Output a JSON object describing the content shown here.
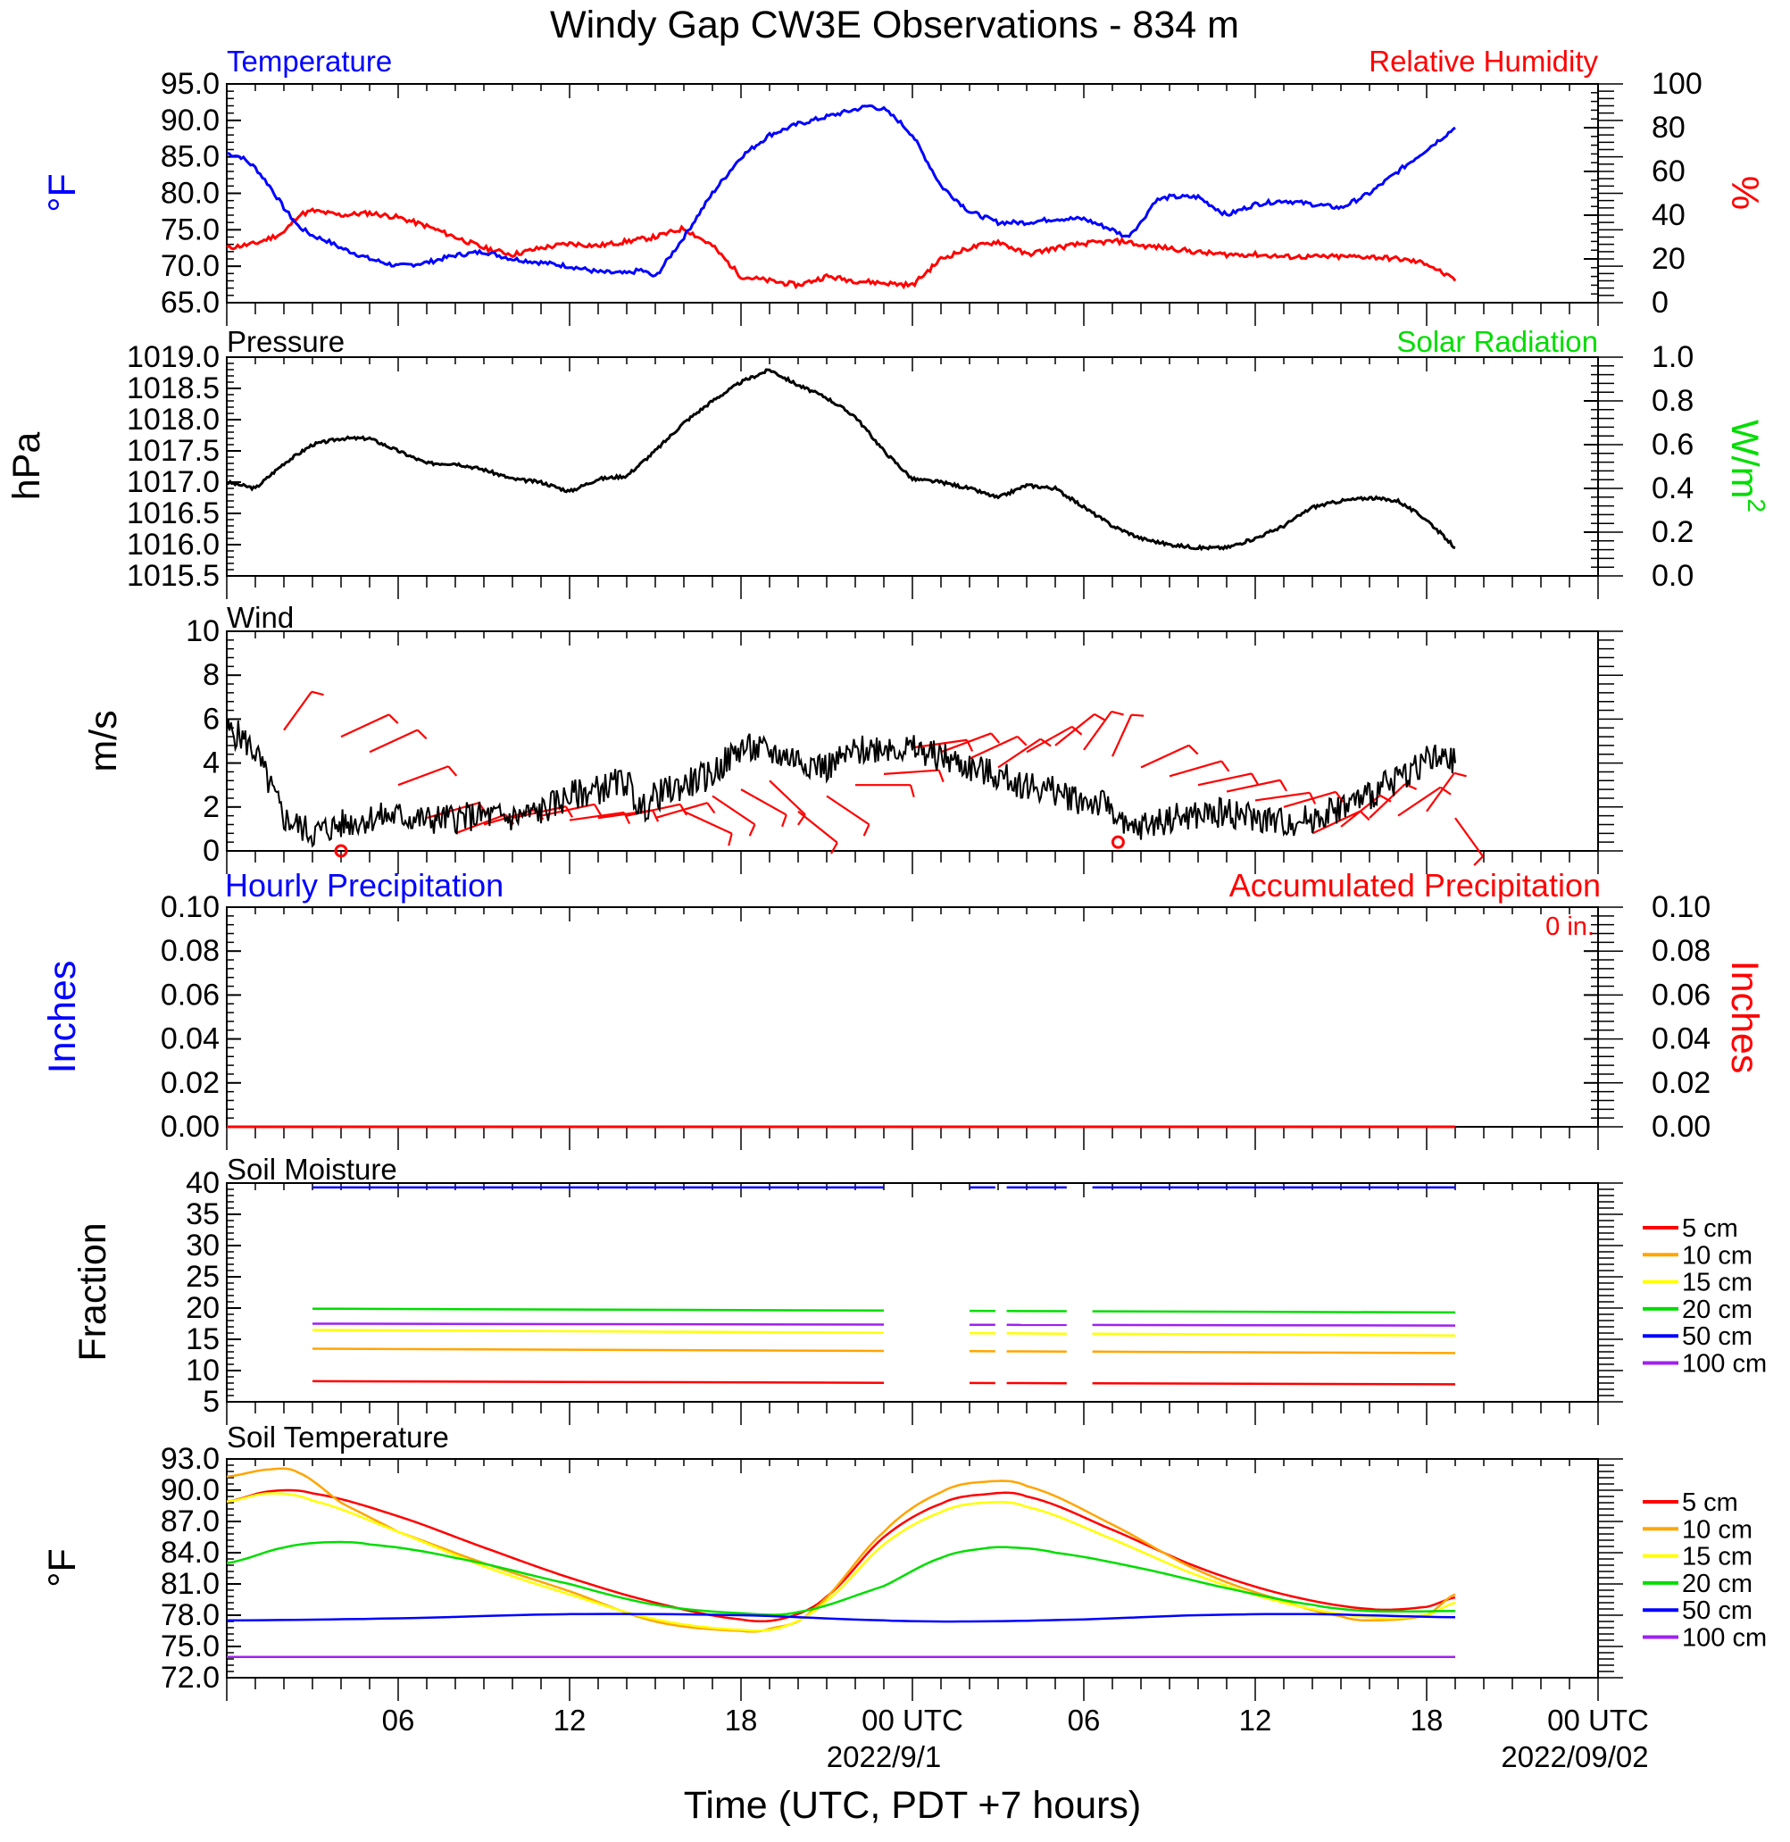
{
  "title": "Windy Gap CW3E Observations - 834 m",
  "xlabel": "Time (UTC, PDT +7 hours)",
  "x_ticks": [
    "06",
    "12",
    "18",
    "00 UTC",
    "06",
    "12",
    "18",
    "00 UTC"
  ],
  "x_dates": [
    "2022/9/1",
    "2022/09/02"
  ],
  "colors": {
    "blue": "#0000ff",
    "red": "#ff0000",
    "green": "#00dd00",
    "orange": "#ffa500",
    "yellow": "#ffff00",
    "purple": "#a020f0",
    "black": "#000000"
  },
  "chart_data": [
    {
      "type": "line",
      "panel": "temperature-rh",
      "title_left": "Temperature",
      "title_right": "Relative Humidity",
      "ylabel_left": "°F",
      "ylabel_right": "%",
      "x_range_hours": [
        0,
        48
      ],
      "ylim_left": [
        65,
        95
      ],
      "yticks_left": [
        "95.0",
        "90.0",
        "85.0",
        "80.0",
        "75.0",
        "70.0",
        "65.0"
      ],
      "ylim_right": [
        0,
        100
      ],
      "yticks_right": [
        "100",
        "80",
        "60",
        "40",
        "20",
        "0"
      ],
      "series": [
        {
          "name": "Temperature",
          "axis": "left",
          "color": "blue",
          "x": [
            0,
            0.5,
            1,
            1.5,
            2,
            2.5,
            3,
            3.5,
            4,
            5,
            6,
            7,
            8,
            9,
            10,
            11,
            12,
            13,
            14,
            14.5,
            15,
            16,
            17,
            18,
            19,
            20,
            21,
            22,
            22.5,
            23,
            23.5,
            24,
            25,
            26,
            27,
            28,
            29,
            30,
            31,
            31.5,
            32,
            32.5,
            33,
            34,
            35,
            36,
            37,
            38,
            39,
            40,
            41,
            42,
            43
          ],
          "y": [
            85.5,
            85,
            83.5,
            81,
            78,
            75.5,
            74.2,
            73.5,
            72.5,
            71,
            70,
            70.5,
            71.5,
            72,
            71,
            70.5,
            70,
            69.2,
            69,
            69.5,
            68.5,
            74,
            80,
            85,
            88,
            89.5,
            90.5,
            91.5,
            92,
            91.5,
            90,
            88,
            81,
            77.5,
            76,
            76,
            76.5,
            76.5,
            75,
            74,
            76,
            79,
            79.5,
            79.5,
            77,
            78.5,
            79,
            78.5,
            78,
            80,
            83,
            86,
            89
          ]
        },
        {
          "name": "Relative Humidity",
          "axis": "right",
          "color": "red",
          "x": [
            0,
            1,
            2,
            2.5,
            3,
            4,
            5,
            6,
            7,
            8,
            9,
            10,
            11,
            12,
            13,
            14,
            15,
            16,
            17,
            18,
            19,
            20,
            21,
            22,
            23,
            24,
            25,
            26,
            27,
            28,
            29,
            30,
            31,
            31.5,
            32,
            33,
            34,
            35,
            36,
            37,
            38,
            39,
            40,
            41,
            42,
            43
          ],
          "y": [
            25,
            27,
            32,
            40,
            42,
            40,
            41,
            39,
            35,
            30,
            25,
            22,
            25,
            27,
            26,
            28,
            30,
            34,
            26,
            12,
            10,
            8,
            12,
            10,
            9,
            8,
            20,
            25,
            28,
            22,
            25,
            27,
            28,
            28,
            26,
            25,
            23,
            22,
            22,
            21,
            21,
            21,
            21,
            20,
            18,
            10
          ]
        }
      ]
    },
    {
      "type": "line",
      "panel": "pressure-solar",
      "title_left": "Pressure",
      "title_right": "Solar Radiation",
      "ylabel_left": "hPa",
      "ylabel_right": "W/m",
      "ylabel_right_sup": "2",
      "ylim_left": [
        1015.5,
        1019.0
      ],
      "yticks_left": [
        "1019.0",
        "1018.5",
        "1018.0",
        "1017.5",
        "1017.0",
        "1016.5",
        "1016.0",
        "1015.5"
      ],
      "ylim_right": [
        0,
        1.0
      ],
      "yticks_right": [
        "1.0",
        "0.8",
        "0.6",
        "0.4",
        "0.2",
        "0.0"
      ],
      "series": [
        {
          "name": "Pressure",
          "axis": "left",
          "color": "black",
          "x": [
            0,
            1,
            2,
            3,
            4,
            5,
            6,
            7,
            8,
            9,
            10,
            11,
            12,
            13,
            14,
            15,
            16,
            17,
            18,
            19,
            20,
            21,
            22,
            23,
            24,
            25,
            26,
            27,
            28,
            29,
            30,
            31,
            32,
            33,
            34,
            35,
            36,
            37,
            38,
            39,
            40,
            41,
            42,
            43
          ],
          "y": [
            1017.0,
            1016.9,
            1017.3,
            1017.6,
            1017.7,
            1017.7,
            1017.5,
            1017.3,
            1017.3,
            1017.2,
            1017.05,
            1017.0,
            1016.85,
            1017.05,
            1017.1,
            1017.5,
            1017.95,
            1018.3,
            1018.6,
            1018.8,
            1018.55,
            1018.35,
            1018.05,
            1017.5,
            1017.05,
            1017.0,
            1016.9,
            1016.75,
            1016.95,
            1016.9,
            1016.6,
            1016.3,
            1016.1,
            1016.0,
            1015.95,
            1015.95,
            1016.1,
            1016.3,
            1016.6,
            1016.7,
            1016.75,
            1016.7,
            1016.4,
            1015.95
          ]
        }
      ]
    },
    {
      "type": "line",
      "panel": "wind",
      "title_left": "Wind",
      "ylabel_left": "m/s",
      "ylim_left": [
        0,
        10
      ],
      "yticks_left": [
        "10",
        "8",
        "6",
        "4",
        "2",
        "0"
      ],
      "series": [
        {
          "name": "Wind speed",
          "axis": "left",
          "color": "black",
          "x": [
            0,
            0.5,
            1,
            1.5,
            2,
            3,
            4,
            5,
            6,
            7,
            8,
            9,
            10,
            11,
            12,
            13,
            14,
            14.5,
            15,
            16,
            17,
            18,
            19,
            20,
            21,
            22,
            23,
            24,
            25,
            26,
            27,
            28,
            29,
            30,
            31,
            31.5,
            32,
            33,
            34,
            35,
            36,
            37,
            38,
            39,
            40,
            41,
            42,
            43
          ],
          "y": [
            5.5,
            5.2,
            4.5,
            3,
            1.5,
            0.8,
            1.2,
            1.5,
            1.6,
            1.4,
            1.5,
            1.6,
            1.5,
            1.8,
            2.5,
            2.8,
            3.2,
            1.8,
            2.5,
            3,
            3.5,
            4.7,
            4.5,
            4.2,
            3.8,
            4.5,
            4.8,
            4.6,
            4.3,
            3.8,
            3.4,
            3.0,
            2.7,
            2.3,
            2.0,
            0.8,
            1.1,
            1.5,
            1.6,
            1.8,
            1.5,
            1.3,
            1.5,
            2.0,
            2.5,
            3.3,
            4.2,
            4.0
          ]
        }
      ],
      "calm_marks_hours": [
        4,
        31.2
      ],
      "barb_hours": [
        2,
        4,
        5,
        6,
        7,
        8,
        9,
        10,
        11,
        12,
        13,
        14,
        15,
        16,
        17,
        18,
        19,
        20,
        21,
        22,
        23,
        24,
        25,
        26,
        27,
        28,
        29,
        30,
        31,
        32,
        33,
        34,
        35,
        36,
        37,
        38,
        39,
        40,
        41,
        42,
        43
      ]
    },
    {
      "type": "line",
      "panel": "precipitation",
      "title_left": "Hourly Precipitation",
      "title_right": "Accumulated Precipitation",
      "annotation": "0 in.",
      "ylabel_left": "Inches",
      "ylabel_right": "Inches",
      "ylim_left": [
        0,
        0.1
      ],
      "yticks_left": [
        "0.10",
        "0.08",
        "0.06",
        "0.04",
        "0.02",
        "0.00"
      ],
      "yticks_right": [
        "0.10",
        "0.08",
        "0.06",
        "0.04",
        "0.02",
        "0.00"
      ],
      "series": [
        {
          "name": "Hourly Precipitation",
          "color": "blue",
          "x": [
            0,
            43
          ],
          "y": [
            0,
            0
          ]
        },
        {
          "name": "Accumulated Precipitation",
          "color": "red",
          "x": [
            0,
            43
          ],
          "y": [
            0,
            0
          ]
        }
      ]
    },
    {
      "type": "line",
      "panel": "soil-moisture",
      "title_left": "Soil Moisture",
      "ylabel_left": "Fraction",
      "ylim_left": [
        5,
        40
      ],
      "yticks_left": [
        "40",
        "35",
        "30",
        "25",
        "20",
        "15",
        "10",
        "5"
      ],
      "gaps_hours": [
        [
          23,
          26
        ],
        [
          26.9,
          27.3
        ],
        [
          29.4,
          30.3
        ]
      ],
      "x_range_data": [
        3,
        43
      ],
      "series": [
        {
          "name": "5 cm",
          "color": "red",
          "y_start": 8.3,
          "y_end": 7.8
        },
        {
          "name": "10 cm",
          "color": "orange",
          "y_start": 13.5,
          "y_end": 12.8
        },
        {
          "name": "15 cm",
          "color": "yellow",
          "y_start": 16.5,
          "y_end": 15.6
        },
        {
          "name": "20 cm",
          "color": "green",
          "y_start": 19.9,
          "y_end": 19.3
        },
        {
          "name": "50 cm",
          "color": "blue",
          "y_start": 39.3,
          "y_end": 39.3
        },
        {
          "name": "100 cm",
          "color": "purple",
          "y_start": 17.5,
          "y_end": 17.2
        }
      ]
    },
    {
      "type": "line",
      "panel": "soil-temperature",
      "title_left": "Soil Temperature",
      "ylabel_left": "°F",
      "ylim_left": [
        72,
        93
      ],
      "yticks_left": [
        "93.0",
        "90.0",
        "87.0",
        "84.0",
        "81.0",
        "78.0",
        "75.0",
        "72.0"
      ],
      "series": [
        {
          "name": "5 cm",
          "color": "red",
          "x": [
            0,
            1.5,
            3,
            6,
            9,
            12,
            15,
            18,
            19.5,
            21,
            23,
            25,
            26.5,
            28,
            31,
            34,
            37,
            40,
            42,
            43
          ],
          "y": [
            88.9,
            89.9,
            89.7,
            87.5,
            84.5,
            81.6,
            79.2,
            77.6,
            77.7,
            79.8,
            85.5,
            88.7,
            89.6,
            89.4,
            86.2,
            82.6,
            80.0,
            78.6,
            78.8,
            79.7
          ]
        },
        {
          "name": "10 cm",
          "color": "orange",
          "x": [
            0,
            1.5,
            2.5,
            4,
            6,
            9,
            12,
            15,
            18,
            19,
            20.5,
            23,
            25,
            26.5,
            28,
            31,
            34,
            37,
            39,
            40,
            42,
            43
          ],
          "y": [
            91.3,
            92.0,
            91.7,
            88.8,
            86.0,
            83.0,
            80.3,
            77.4,
            76.5,
            76.7,
            78.5,
            86.0,
            89.8,
            90.8,
            90.4,
            86.7,
            82.3,
            79.4,
            77.9,
            77.5,
            78.0,
            80.0
          ]
        },
        {
          "name": "15 cm",
          "color": "yellow",
          "x": [
            0,
            1.5,
            3,
            6,
            9,
            12,
            15,
            18,
            19.5,
            21,
            23,
            25,
            26.5,
            28,
            31,
            34,
            37,
            40,
            42,
            43
          ],
          "y": [
            88.9,
            89.7,
            89.0,
            86.0,
            82.7,
            80.0,
            77.6,
            76.6,
            76.9,
            79.4,
            84.8,
            87.9,
            88.8,
            88.4,
            85.3,
            81.8,
            79.2,
            77.8,
            78.0,
            79.2
          ]
        },
        {
          "name": "20 cm",
          "color": "green",
          "x": [
            0,
            2,
            3.5,
            5,
            8,
            12,
            15,
            18,
            20,
            23,
            25,
            26.5,
            27.5,
            29,
            32,
            35,
            38,
            40,
            43
          ],
          "y": [
            83.0,
            84.5,
            85.0,
            84.8,
            83.5,
            81.0,
            79.0,
            78.2,
            78.3,
            80.8,
            83.5,
            84.4,
            84.5,
            84.0,
            82.5,
            80.6,
            79.0,
            78.4,
            78.4
          ]
        },
        {
          "name": "50 cm",
          "color": "blue",
          "x": [
            0,
            6,
            12,
            18,
            23,
            26,
            30,
            34,
            38,
            43
          ],
          "y": [
            77.5,
            77.7,
            78.1,
            78.0,
            77.5,
            77.4,
            77.6,
            78.0,
            78.1,
            77.8
          ]
        },
        {
          "name": "100 cm",
          "color": "purple",
          "x": [
            0,
            12,
            24,
            36,
            43
          ],
          "y": [
            74.0,
            74.0,
            74.0,
            74.0,
            74.0
          ]
        }
      ]
    }
  ]
}
